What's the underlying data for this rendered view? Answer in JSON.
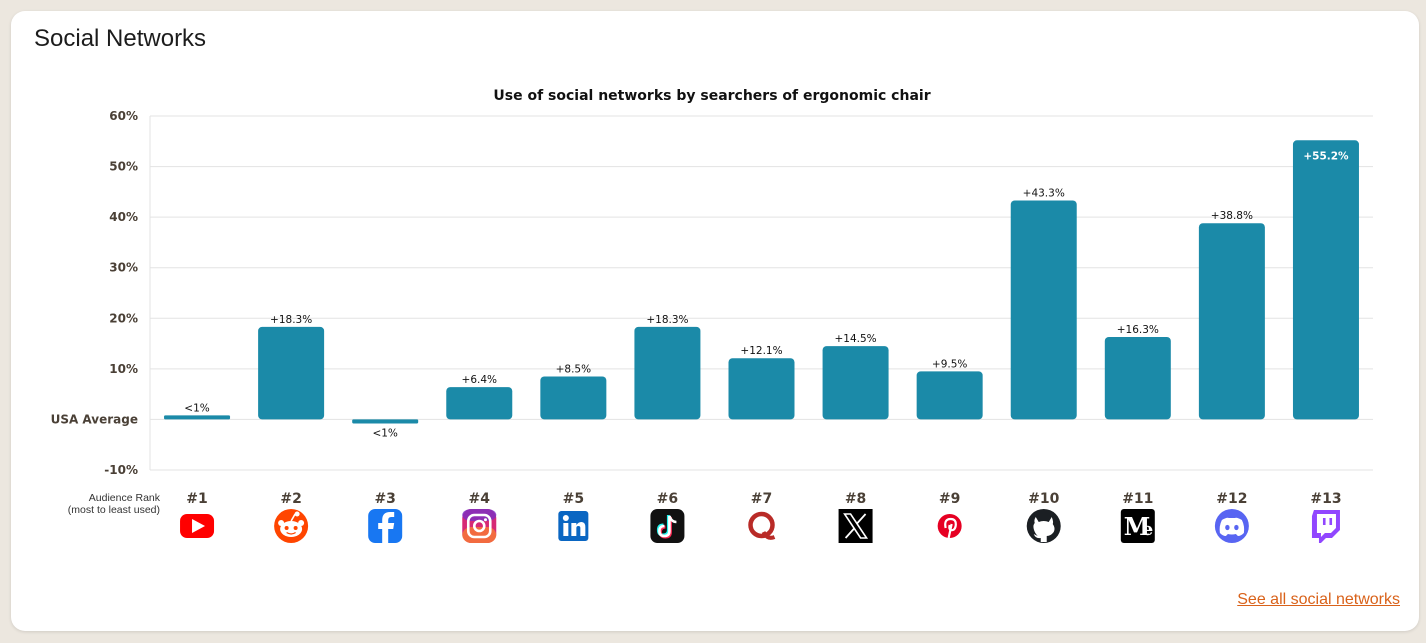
{
  "card": {
    "title": "Social Networks",
    "see_all_label": "See all social networks"
  },
  "colors": {
    "bar": "#1b8aa8",
    "grid": "#e3e3e3",
    "link": "#d9621a"
  },
  "chart_data": {
    "type": "bar",
    "title": "Use of social networks by searchers of ergonomic chair",
    "ylim": [
      -10,
      60
    ],
    "yticks": [
      {
        "value": 60,
        "label": "60%"
      },
      {
        "value": 50,
        "label": "50%"
      },
      {
        "value": 40,
        "label": "40%"
      },
      {
        "value": 30,
        "label": "30%"
      },
      {
        "value": 20,
        "label": "20%"
      },
      {
        "value": 10,
        "label": "10%"
      },
      {
        "value": 0,
        "label": "USA Average"
      },
      {
        "value": -10,
        "label": "-10%"
      }
    ],
    "grid": true,
    "rank_axis_label": [
      "Audience Rank",
      "(most to least used)"
    ],
    "categories": [
      "YouTube",
      "Reddit",
      "Facebook",
      "Instagram",
      "LinkedIn",
      "TikTok",
      "Quora",
      "X",
      "Pinterest",
      "GitHub",
      "Medium",
      "Discord",
      "Twitch"
    ],
    "ranks": [
      "#1",
      "#2",
      "#3",
      "#4",
      "#5",
      "#6",
      "#7",
      "#8",
      "#9",
      "#10",
      "#11",
      "#12",
      "#13"
    ],
    "values": [
      0.8,
      18.3,
      -0.8,
      6.4,
      8.5,
      18.3,
      12.1,
      14.5,
      9.5,
      43.3,
      16.3,
      38.8,
      55.2
    ],
    "data_labels": [
      "<1%",
      "+18.3%",
      "<1%",
      "+6.4%",
      "+8.5%",
      "+18.3%",
      "+12.1%",
      "+14.5%",
      "+9.5%",
      "+43.3%",
      "+16.3%",
      "+38.8%",
      "+55.2%"
    ],
    "icons": [
      "youtube-icon",
      "reddit-icon",
      "facebook-icon",
      "instagram-icon",
      "linkedin-icon",
      "tiktok-icon",
      "quora-icon",
      "x-icon",
      "pinterest-icon",
      "github-icon",
      "medium-icon",
      "discord-icon",
      "twitch-icon"
    ]
  }
}
